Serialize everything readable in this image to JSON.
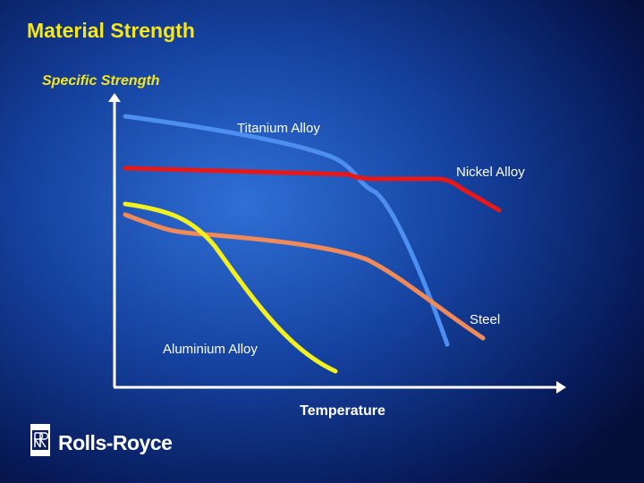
{
  "header": {
    "title": "Material Strength",
    "subtitle": "Specific Strength"
  },
  "diagram": {
    "x_axis_label": "Temperature",
    "curves": [
      {
        "label": "Titanium Alloy"
      },
      {
        "label": "Nickel Alloy"
      },
      {
        "label": "Steel"
      },
      {
        "label": "Aluminium Alloy"
      }
    ]
  },
  "footer": {
    "logo_text": "Rolls-Royce"
  }
}
